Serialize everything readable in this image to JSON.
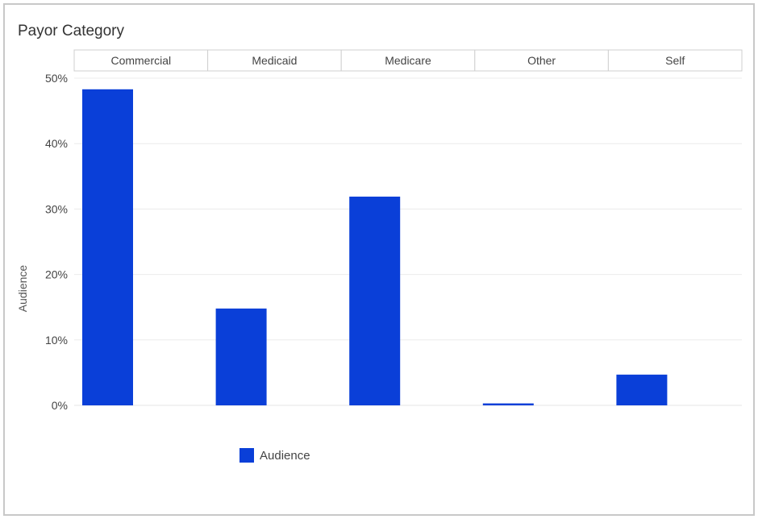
{
  "chart_data": {
    "type": "bar",
    "title": "Payor Category",
    "categories": [
      "Commercial",
      "Medicaid",
      "Medicare",
      "Other",
      "Self"
    ],
    "series": [
      {
        "name": "Audience",
        "values": [
          48.3,
          14.8,
          31.9,
          0.3,
          4.7
        ]
      }
    ],
    "ylabel": "Audience",
    "xlabel": "",
    "ylim": [
      0,
      50
    ],
    "y_ticks": [
      "0%",
      "10%",
      "20%",
      "30%",
      "40%",
      "50%"
    ],
    "y_tick_values": [
      0,
      10,
      20,
      30,
      40,
      50
    ],
    "grid": true,
    "legend_position": "bottom",
    "colors": {
      "bar": "#0a3fd8",
      "grid": "#ececec",
      "header_border": "#cfcfcf"
    }
  }
}
